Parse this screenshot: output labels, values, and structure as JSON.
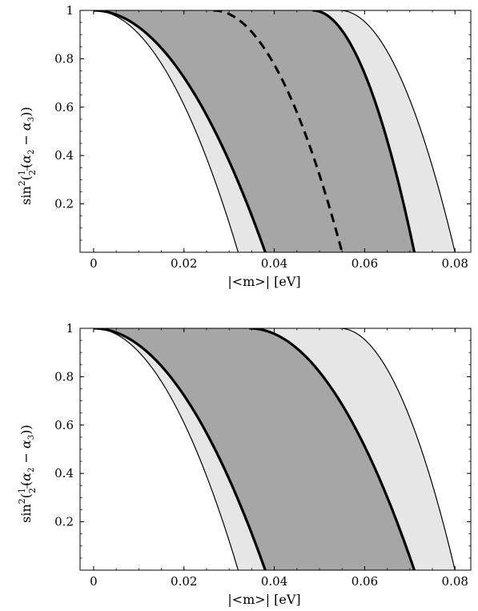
{
  "chart_data": [
    {
      "type": "area",
      "xlabel": "|<m>| [eV]",
      "ylabel": {
        "prefix": "sin",
        "power": "2",
        "frac_num": "1",
        "frac_den": "2",
        "a2": "α",
        "a2_sub": "2",
        "minus": " − ",
        "a3": "α",
        "a3_sub": "3"
      },
      "xlim": [
        -0.003,
        0.0835
      ],
      "ylim": [
        0,
        1
      ],
      "xticks": [
        {
          "v": 0,
          "label": "0"
        },
        {
          "v": 0.02,
          "label": "0.02"
        },
        {
          "v": 0.04,
          "label": "0.04"
        },
        {
          "v": 0.06,
          "label": "0.06"
        },
        {
          "v": 0.08,
          "label": "0.08"
        }
      ],
      "yticks": [
        {
          "v": 0.2,
          "label": "0.2"
        },
        {
          "v": 0.4,
          "label": "0.4"
        },
        {
          "v": 0.6,
          "label": "0.6"
        },
        {
          "v": 0.8,
          "label": "0.8"
        },
        {
          "v": 1,
          "label": "1"
        }
      ],
      "curves": {
        "outer_left": {
          "x0": 0.0,
          "x1": 0.032,
          "style": "thin"
        },
        "inner_left": {
          "x0": 0.0,
          "x1": 0.038,
          "style": "thick"
        },
        "dashed": {
          "x0": 0.0265,
          "x1": 0.055,
          "style": "dashed"
        },
        "inner_right": {
          "x0": 0.0485,
          "x1": 0.071,
          "style": "thick"
        },
        "outer_right": {
          "x0": 0.0545,
          "x1": 0.08,
          "style": "thin"
        }
      },
      "colors": {
        "light_band": "#e6e6e6",
        "dark_band": "#a6a6a6",
        "line": "#000000"
      }
    },
    {
      "type": "area",
      "xlabel": "|<m>| [eV]",
      "ylabel": {
        "prefix": "sin",
        "power": "2",
        "frac_num": "1",
        "frac_den": "2",
        "a2": "α",
        "a2_sub": "2",
        "minus": " − ",
        "a3": "α",
        "a3_sub": "3"
      },
      "xlim": [
        -0.003,
        0.0835
      ],
      "ylim": [
        0,
        1
      ],
      "xticks": [
        {
          "v": 0,
          "label": "0"
        },
        {
          "v": 0.02,
          "label": "0.02"
        },
        {
          "v": 0.04,
          "label": "0.04"
        },
        {
          "v": 0.06,
          "label": "0.06"
        },
        {
          "v": 0.08,
          "label": "0.08"
        }
      ],
      "yticks": [
        {
          "v": 0.2,
          "label": "0.2"
        },
        {
          "v": 0.4,
          "label": "0.4"
        },
        {
          "v": 0.6,
          "label": "0.6"
        },
        {
          "v": 0.8,
          "label": "0.8"
        },
        {
          "v": 1,
          "label": "1"
        }
      ],
      "curves": {
        "outer_left": {
          "x0": 0.0,
          "x1": 0.032,
          "style": "thin"
        },
        "inner_left": {
          "x0": 0.0,
          "x1": 0.038,
          "style": "thick"
        },
        "inner_right": {
          "x0": 0.0345,
          "x1": 0.071,
          "style": "thick"
        },
        "outer_right": {
          "x0": 0.0545,
          "x1": 0.08,
          "style": "thin"
        }
      },
      "colors": {
        "light_band": "#e6e6e6",
        "dark_band": "#a6a6a6",
        "line": "#000000"
      }
    }
  ]
}
